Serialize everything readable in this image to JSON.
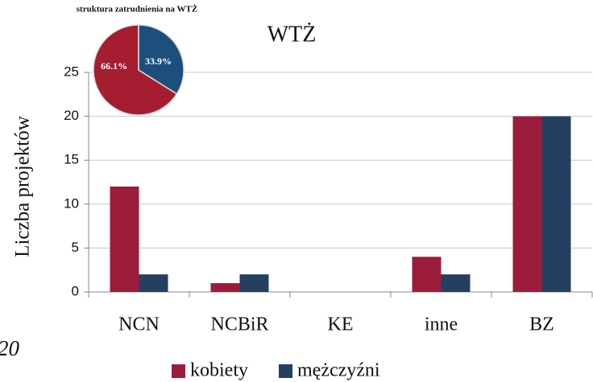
{
  "page_label": "20",
  "chart_data": [
    {
      "type": "bar",
      "title": "WTŻ",
      "y_label": "Liczba projektów",
      "categories": [
        "NCN",
        "NCBiR",
        "KE",
        "inne",
        "BZ"
      ],
      "series": [
        {
          "name": "kobiety",
          "color": "#9c1c3c",
          "values": [
            12,
            1,
            0,
            4,
            20
          ]
        },
        {
          "name": "mężczyźni",
          "color": "#243f60",
          "values": [
            2,
            2,
            0,
            2,
            20
          ]
        }
      ],
      "ylim": [
        0,
        25
      ],
      "yticks": [
        0,
        5,
        10,
        15,
        20,
        25
      ],
      "grid": true,
      "legend": "bottom"
    },
    {
      "type": "pie",
      "title": "struktura zatrudnienia na WTŻ",
      "values": [
        66.1,
        33.9
      ],
      "value_labels": [
        "66.1%",
        "33.9%"
      ],
      "colors": [
        "#a41d30",
        "#1d4f7c"
      ]
    }
  ]
}
